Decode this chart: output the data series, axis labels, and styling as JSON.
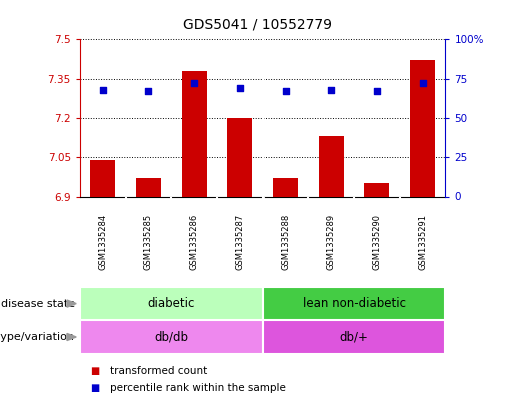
{
  "title": "GDS5041 / 10552779",
  "samples": [
    "GSM1335284",
    "GSM1335285",
    "GSM1335286",
    "GSM1335287",
    "GSM1335288",
    "GSM1335289",
    "GSM1335290",
    "GSM1335291"
  ],
  "transformed_count": [
    7.04,
    6.97,
    7.38,
    7.2,
    6.97,
    7.13,
    6.95,
    7.42
  ],
  "percentile_rank": [
    68,
    67,
    72,
    69,
    67,
    68,
    67,
    72
  ],
  "ylim_left": [
    6.9,
    7.5
  ],
  "ylim_right": [
    0,
    100
  ],
  "yticks_left": [
    6.9,
    7.05,
    7.2,
    7.35,
    7.5
  ],
  "yticks_right": [
    0,
    25,
    50,
    75,
    100
  ],
  "ytick_labels_left": [
    "6.9",
    "7.05",
    "7.2",
    "7.35",
    "7.5"
  ],
  "ytick_labels_right": [
    "0",
    "25",
    "50",
    "75",
    "100%"
  ],
  "bar_color": "#cc0000",
  "dot_color": "#0000cc",
  "disease_groups": [
    {
      "label": "diabetic",
      "color": "#bbffbb",
      "start": 0,
      "end": 4
    },
    {
      "label": "lean non-diabetic",
      "color": "#44cc44",
      "start": 4,
      "end": 8
    }
  ],
  "genotype_groups": [
    {
      "label": "db/db",
      "color": "#ee88ee",
      "start": 0,
      "end": 4
    },
    {
      "label": "db/+",
      "color": "#dd55dd",
      "start": 4,
      "end": 8
    }
  ],
  "disease_state_label": "disease state",
  "genotype_label": "genotype/variation",
  "legend_items": [
    {
      "color": "#cc0000",
      "label": "transformed count"
    },
    {
      "color": "#0000cc",
      "label": "percentile rank within the sample"
    }
  ],
  "bg_color_plot": "#ffffff",
  "bg_color_sample_row": "#cccccc",
  "grid_color": "#000000"
}
